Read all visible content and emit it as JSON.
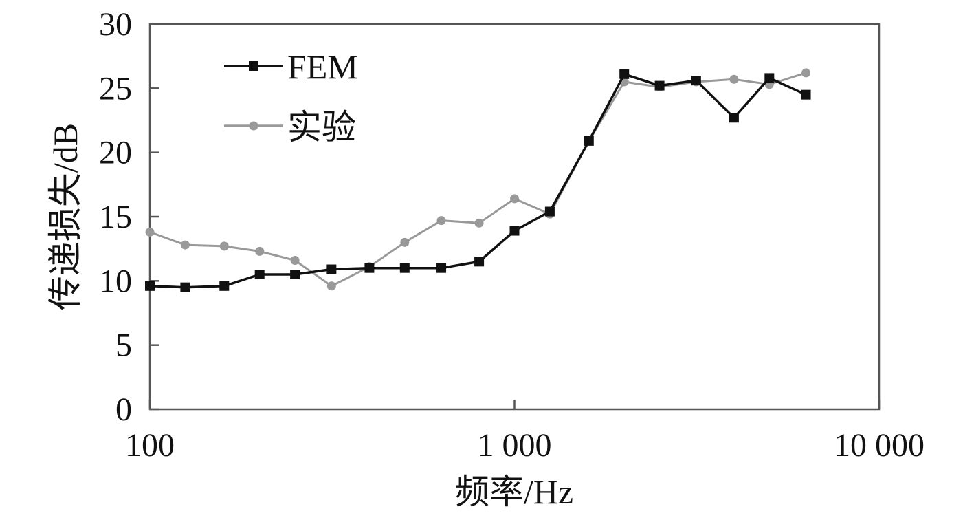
{
  "chart_data": {
    "type": "line",
    "xlabel": "频率/Hz",
    "ylabel": "传递损失/dB",
    "xscale": "log",
    "xlim": [
      100,
      10000
    ],
    "ylim": [
      0,
      30
    ],
    "xticks": [
      100,
      1000,
      10000
    ],
    "xtick_labels": [
      "100",
      "1 000",
      "10 000"
    ],
    "yticks": [
      0,
      5,
      10,
      15,
      20,
      25,
      30
    ],
    "ytick_labels": [
      "0",
      "5",
      "10",
      "15",
      "20",
      "25",
      "30"
    ],
    "grid": false,
    "legend_position": "top-left",
    "x": [
      100,
      125,
      160,
      200,
      250,
      315,
      400,
      500,
      630,
      800,
      1000,
      1250,
      1600,
      2000,
      2500,
      3150,
      4000,
      5000,
      6300
    ],
    "series": [
      {
        "name": "实验",
        "color": "#999999",
        "marker": "circle",
        "values": [
          13.8,
          12.8,
          12.7,
          12.3,
          11.6,
          9.6,
          11.1,
          13.0,
          14.7,
          14.5,
          16.4,
          15.2,
          20.9,
          25.5,
          25.1,
          25.5,
          25.7,
          25.3,
          26.2
        ]
      },
      {
        "name": "FEM",
        "color": "#111111",
        "marker": "square",
        "values": [
          9.6,
          9.5,
          9.6,
          10.5,
          10.5,
          10.9,
          11.0,
          11.0,
          11.0,
          11.5,
          13.9,
          15.4,
          20.9,
          26.1,
          25.2,
          25.6,
          22.7,
          25.8,
          24.5
        ]
      }
    ]
  }
}
